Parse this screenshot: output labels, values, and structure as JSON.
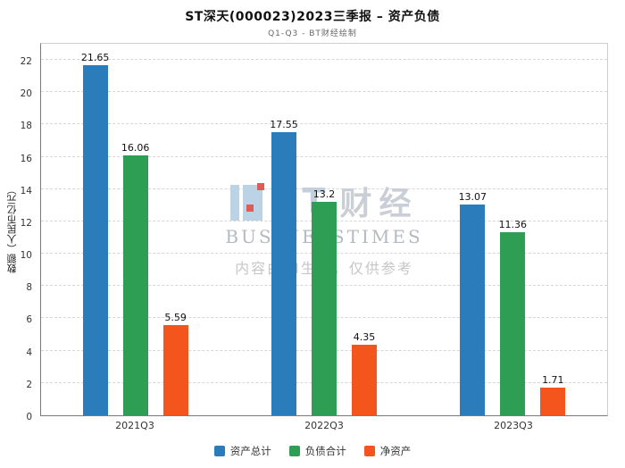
{
  "title": "ST深天(000023)2023三季报 – 资产负债",
  "subtitle": "Q1-Q3 - BT财经绘制",
  "watermark": {
    "logo": "BT",
    "logo_cn": "财经",
    "brand": "BUSINESSTIMES",
    "disclaimer": "内容由AI生成，仅供参考"
  },
  "chart_data": {
    "type": "bar",
    "title": "ST深天(000023)2023三季报 – 资产负债",
    "subtitle": "Q1-Q3 - BT财经绘制",
    "categories": [
      "2021Q3",
      "2022Q3",
      "2023Q3"
    ],
    "series": [
      {
        "name": "资产总计",
        "color": "#2b7cba",
        "values": [
          21.65,
          17.55,
          13.07
        ]
      },
      {
        "name": "负债合计",
        "color": "#2f9e55",
        "values": [
          16.06,
          13.2,
          11.36
        ]
      },
      {
        "name": "净资产",
        "color": "#f4551c",
        "values": [
          5.59,
          4.35,
          1.71
        ]
      }
    ],
    "xlabel": "",
    "ylabel": "数额（人民币亿元）",
    "ylim": [
      0,
      22
    ],
    "ytick_step": 2,
    "grid": "horizontal-dashed",
    "legend_position": "bottom"
  }
}
